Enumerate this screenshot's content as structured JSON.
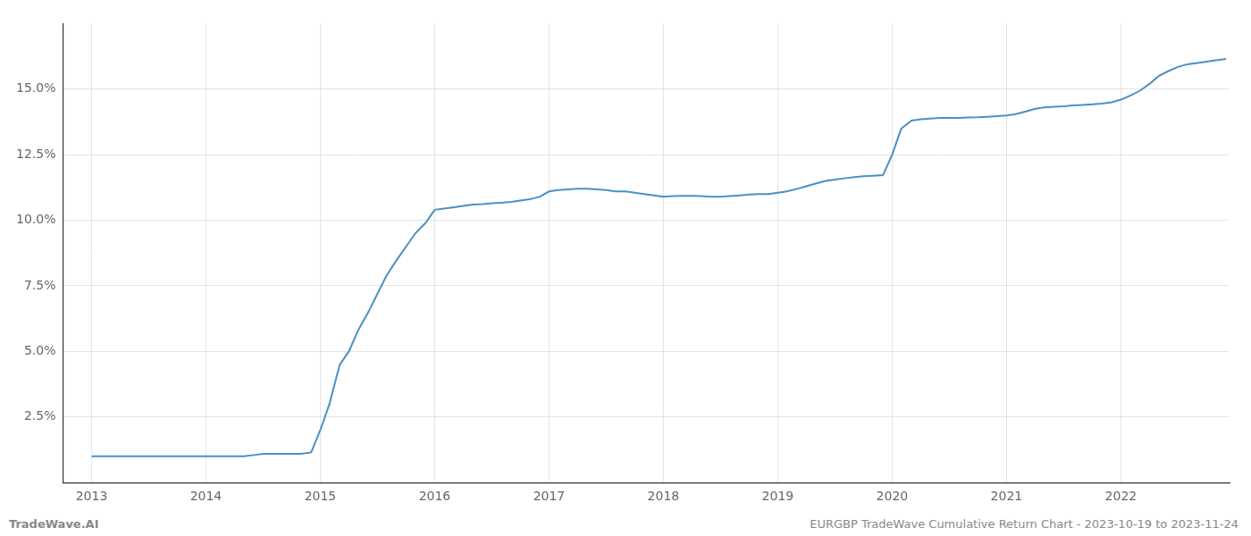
{
  "chart_data": {
    "type": "line",
    "annotations": [
      "TradeWave.AI",
      "EURGBP TradeWave Cumulative Return Chart - 2023-10-19 to 2023-11-24"
    ],
    "x": [
      2013.0,
      2013.08,
      2013.17,
      2013.25,
      2013.33,
      2013.42,
      2013.5,
      2013.58,
      2013.67,
      2013.75,
      2013.83,
      2013.92,
      2014.0,
      2014.08,
      2014.17,
      2014.25,
      2014.33,
      2014.42,
      2014.5,
      2014.58,
      2014.67,
      2014.75,
      2014.83,
      2014.92,
      2015.0,
      2015.08,
      2015.17,
      2015.25,
      2015.33,
      2015.42,
      2015.5,
      2015.58,
      2015.67,
      2015.75,
      2015.83,
      2015.92,
      2016.0,
      2016.08,
      2016.17,
      2016.25,
      2016.33,
      2016.42,
      2016.5,
      2016.58,
      2016.67,
      2016.75,
      2016.83,
      2016.92,
      2017.0,
      2017.08,
      2017.17,
      2017.25,
      2017.33,
      2017.42,
      2017.5,
      2017.58,
      2017.67,
      2017.75,
      2017.83,
      2017.92,
      2018.0,
      2018.08,
      2018.17,
      2018.25,
      2018.33,
      2018.42,
      2018.5,
      2018.58,
      2018.67,
      2018.75,
      2018.83,
      2018.92,
      2019.0,
      2019.08,
      2019.17,
      2019.25,
      2019.33,
      2019.42,
      2019.5,
      2019.58,
      2019.67,
      2019.75,
      2019.83,
      2019.92,
      2020.0,
      2020.08,
      2020.17,
      2020.25,
      2020.33,
      2020.42,
      2020.5,
      2020.58,
      2020.67,
      2020.75,
      2020.83,
      2020.92,
      2021.0,
      2021.08,
      2021.17,
      2021.25,
      2021.33,
      2021.42,
      2021.5,
      2021.58,
      2021.67,
      2021.75,
      2021.83,
      2021.92,
      2022.0,
      2022.08,
      2022.17,
      2022.25,
      2022.33,
      2022.42,
      2022.5,
      2022.58,
      2022.67,
      2022.75,
      2022.83,
      2022.92
    ],
    "values": [
      1.0,
      1.0,
      1.0,
      1.0,
      1.0,
      1.0,
      1.0,
      1.0,
      1.0,
      1.0,
      1.0,
      1.0,
      1.0,
      1.0,
      1.0,
      1.0,
      1.0,
      1.05,
      1.1,
      1.1,
      1.1,
      1.1,
      1.1,
      1.15,
      2.0,
      3.0,
      4.5,
      5.0,
      5.8,
      6.5,
      7.2,
      7.9,
      8.5,
      9.0,
      9.5,
      9.9,
      10.4,
      10.45,
      10.5,
      10.55,
      10.6,
      10.62,
      10.65,
      10.67,
      10.7,
      10.75,
      10.8,
      10.9,
      11.1,
      11.15,
      11.18,
      11.2,
      11.2,
      11.18,
      11.15,
      11.1,
      11.1,
      11.05,
      11.0,
      10.95,
      10.9,
      10.92,
      10.93,
      10.93,
      10.92,
      10.9,
      10.9,
      10.92,
      10.95,
      10.98,
      11.0,
      11.0,
      11.05,
      11.1,
      11.2,
      11.3,
      11.4,
      11.5,
      11.55,
      11.6,
      11.65,
      11.68,
      11.7,
      11.72,
      12.5,
      13.5,
      13.8,
      13.85,
      13.88,
      13.9,
      13.9,
      13.9,
      13.92,
      13.93,
      13.95,
      13.97,
      14.0,
      14.05,
      14.15,
      14.25,
      14.3,
      14.33,
      14.35,
      14.38,
      14.4,
      14.42,
      14.45,
      14.5,
      14.6,
      14.75,
      14.95,
      15.2,
      15.5,
      15.7,
      15.85,
      15.95,
      16.0,
      16.05,
      16.1,
      16.15
    ],
    "color": "#4a90c4",
    "xlim": [
      2012.75,
      2022.95
    ],
    "xticks": [
      2013,
      2014,
      2015,
      2016,
      2017,
      2018,
      2019,
      2020,
      2021,
      2022
    ],
    "ylim": [
      0.0,
      17.5
    ],
    "yticks": [
      {
        "value": 2.5,
        "label": "2.5%"
      },
      {
        "value": 5.0,
        "label": "5.0%"
      },
      {
        "value": 7.5,
        "label": "7.5%"
      },
      {
        "value": 10.0,
        "label": "10.0%"
      },
      {
        "value": 12.5,
        "label": "12.5%"
      },
      {
        "value": 15.0,
        "label": "15.0%"
      }
    ],
    "grid": true
  }
}
